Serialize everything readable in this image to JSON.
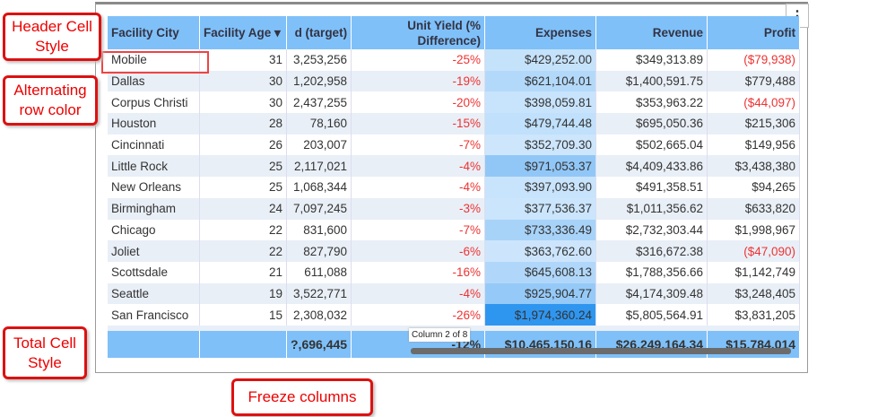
{
  "table": {
    "columns": [
      "Facility City",
      "Facility Age ▾",
      "d (target)",
      "Unit Yield (% Difference)",
      "Expenses",
      "Revenue",
      "Profit"
    ],
    "rows": [
      [
        "Mobile",
        "31",
        "3,253,256",
        "-25%",
        "$429,252.00",
        "$349,313.89",
        "($79,938)"
      ],
      [
        "Dallas",
        "30",
        "1,202,958",
        "-19%",
        "$621,104.01",
        "$1,400,591.75",
        "$779,488"
      ],
      [
        "Corpus Christi",
        "30",
        "2,437,255",
        "-20%",
        "$398,059.81",
        "$353,963.22",
        "($44,097)"
      ],
      [
        "Houston",
        "28",
        "78,160",
        "-15%",
        "$479,744.48",
        "$695,050.36",
        "$215,306"
      ],
      [
        "Cincinnati",
        "26",
        "203,007",
        "-7%",
        "$352,709.30",
        "$502,665.04",
        "$149,956"
      ],
      [
        "Little Rock",
        "25",
        "2,117,021",
        "-4%",
        "$971,053.37",
        "$4,409,433.86",
        "$3,438,380"
      ],
      [
        "New Orleans",
        "25",
        "1,068,344",
        "-4%",
        "$397,093.90",
        "$491,358.51",
        "$94,265"
      ],
      [
        "Birmingham",
        "24",
        "7,097,245",
        "-3%",
        "$377,536.37",
        "$1,011,356.62",
        "$633,820"
      ],
      [
        "Chicago",
        "22",
        "831,600",
        "-7%",
        "$733,336.49",
        "$2,732,303.44",
        "$1,998,967"
      ],
      [
        "Joliet",
        "22",
        "827,790",
        "-6%",
        "$363,762.60",
        "$316,672.38",
        "($47,090)"
      ],
      [
        "Scottsdale",
        "21",
        "611,088",
        "-16%",
        "$645,608.13",
        "$1,788,356.66",
        "$1,142,749"
      ],
      [
        "Seattle",
        "19",
        "3,522,771",
        "-4%",
        "$925,904.77",
        "$4,174,309.48",
        "$3,248,405"
      ],
      [
        "San Francisco",
        "15",
        "2,308,032",
        "-26%",
        "$1,974,360.24",
        "$5,805,564.91",
        "$3,831,205"
      ]
    ],
    "total": [
      "",
      "",
      "?,696,445",
      "-12%",
      "$10,465,150.16",
      "$26,249,164.34",
      "$15,784,014"
    ]
  },
  "tooltip": "Column 2 of 8",
  "menu_icon": "⋮",
  "callouts": {
    "header": "Header Cell Style",
    "alternating": "Alternating row color",
    "total": "Total Cell Style",
    "freeze": "Freeze columns"
  }
}
